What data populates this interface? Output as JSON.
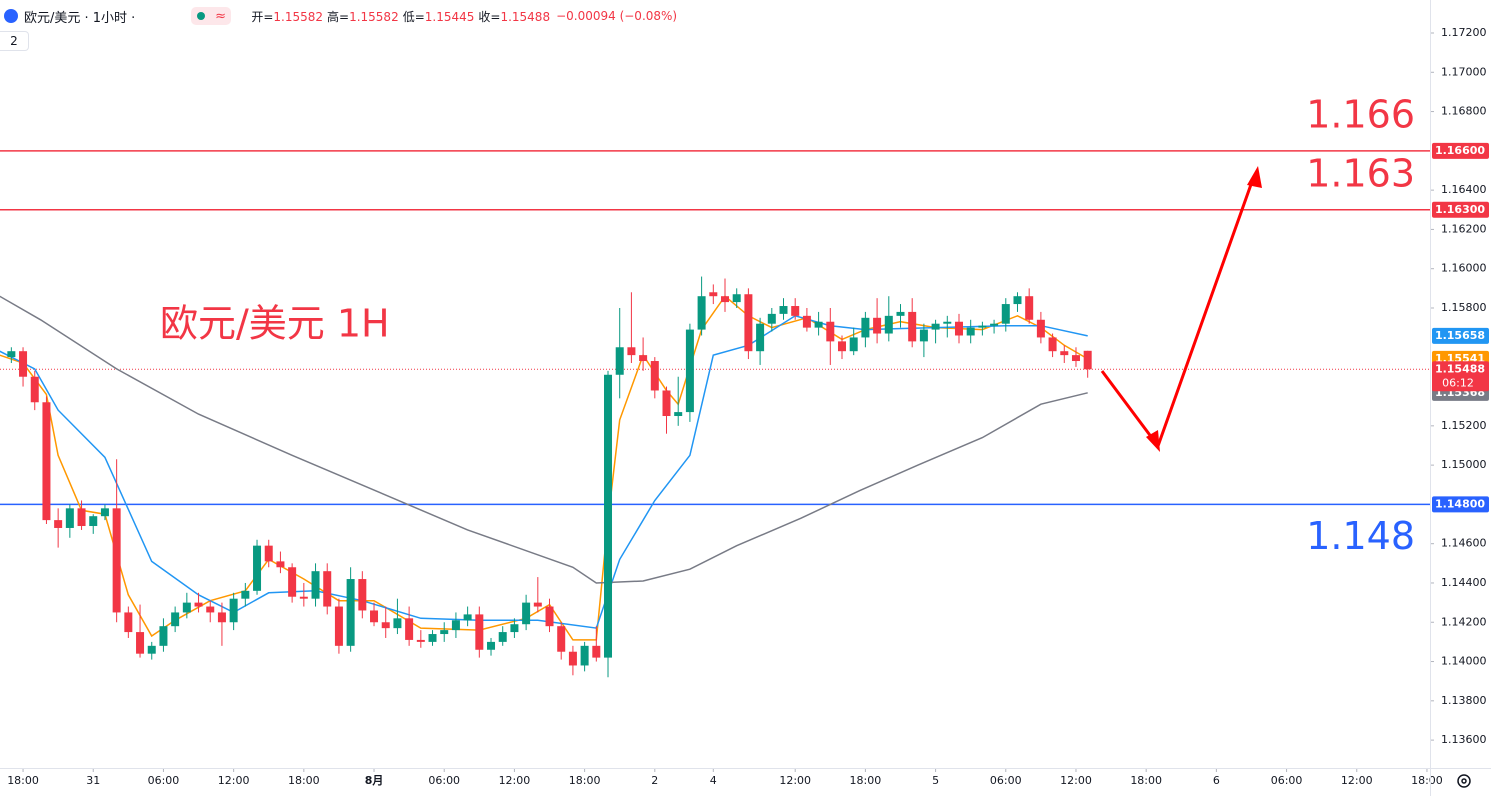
{
  "chart_data": {
    "type": "candlestick",
    "symbol": "欧元/美元 · 1小时 ·",
    "ohlc": [
      {
        "label": "开=",
        "value": 1.15582
      },
      {
        "label": "高=",
        "value": 1.15582
      },
      {
        "label": "低=",
        "value": 1.15445
      },
      {
        "label": "收=",
        "value": 1.15488
      }
    ],
    "change": "−0.00094 (−0.08%)",
    "indicator_count": "2",
    "annotation": "欧元/美元 1H",
    "countdown": "06:12",
    "up_color": "#089981",
    "down_color": "#f23645",
    "grid": false,
    "xlim": [
      -0.97,
      121.26
    ],
    "ylim": [
      1.13458,
      1.17368
    ],
    "xticks": [
      {
        "value": 1,
        "label": "18:00"
      },
      {
        "value": 7,
        "label": "31"
      },
      {
        "value": 13,
        "label": "06:00"
      },
      {
        "value": 19,
        "label": "12:00"
      },
      {
        "value": 25,
        "label": "18:00"
      },
      {
        "value": 31,
        "label": "8月"
      },
      {
        "value": 37,
        "label": "06:00"
      },
      {
        "value": 43,
        "label": "12:00"
      },
      {
        "value": 49,
        "label": "18:00"
      },
      {
        "value": 55,
        "label": "2"
      },
      {
        "value": 60,
        "label": "4"
      },
      {
        "value": 67,
        "label": "12:00"
      },
      {
        "value": 73,
        "label": "18:00"
      },
      {
        "value": 79,
        "label": "5"
      },
      {
        "value": 85,
        "label": "06:00"
      },
      {
        "value": 91,
        "label": "12:00"
      },
      {
        "value": 97,
        "label": "18:00"
      },
      {
        "value": 103,
        "label": "6"
      },
      {
        "value": 109,
        "label": "06:00"
      },
      {
        "value": 115,
        "label": "12:00"
      },
      {
        "value": 121,
        "label": "18:00"
      }
    ],
    "yticks": [
      {
        "value": 1.172,
        "label": "1.17200"
      },
      {
        "value": 1.17,
        "label": "1.17000"
      },
      {
        "value": 1.168,
        "label": "1.16800"
      },
      {
        "value": 1.164,
        "label": "1.16400"
      },
      {
        "value": 1.162,
        "label": "1.16200"
      },
      {
        "value": 1.16,
        "label": "1.16000"
      },
      {
        "value": 1.158,
        "label": "1.15800"
      },
      {
        "value": 1.152,
        "label": "1.15200"
      },
      {
        "value": 1.15,
        "label": "1.15000"
      },
      {
        "value": 1.146,
        "label": "1.14600"
      },
      {
        "value": 1.144,
        "label": "1.14400"
      },
      {
        "value": 1.142,
        "label": "1.14200"
      },
      {
        "value": 1.14,
        "label": "1.14000"
      },
      {
        "value": 1.138,
        "label": "1.13800"
      },
      {
        "value": 1.136,
        "label": "1.13600"
      }
    ],
    "levels": [
      {
        "value": 1.166,
        "label": "1.16600",
        "color": "#f23645"
      },
      {
        "value": 1.163,
        "label": "1.16300",
        "color": "#f23645"
      },
      {
        "value": 1.148,
        "label": "1.14800",
        "color": "#2962ff"
      }
    ],
    "candles": [
      [
        1.1555,
        1.156,
        1.1552,
        1.1558
      ],
      [
        1.1558,
        1.156,
        1.154,
        1.1545
      ],
      [
        1.1545,
        1.1548,
        1.1528,
        1.1532
      ],
      [
        1.1532,
        1.1535,
        1.147,
        1.1472
      ],
      [
        1.1472,
        1.1478,
        1.1458,
        1.1468
      ],
      [
        1.1468,
        1.148,
        1.1463,
        1.1478
      ],
      [
        1.1478,
        1.1482,
        1.1467,
        1.1469
      ],
      [
        1.1469,
        1.1475,
        1.1465,
        1.1474
      ],
      [
        1.1474,
        1.148,
        1.1472,
        1.1478
      ],
      [
        1.1478,
        1.1503,
        1.142,
        1.1425
      ],
      [
        1.1425,
        1.1428,
        1.1412,
        1.1415
      ],
      [
        1.1415,
        1.1429,
        1.1402,
        1.1404
      ],
      [
        1.1404,
        1.141,
        1.1401,
        1.1408
      ],
      [
        1.1408,
        1.1422,
        1.1405,
        1.1418
      ],
      [
        1.1418,
        1.1428,
        1.1415,
        1.1425
      ],
      [
        1.1425,
        1.1435,
        1.1422,
        1.143
      ],
      [
        1.143,
        1.1435,
        1.1425,
        1.1428
      ],
      [
        1.1428,
        1.1431,
        1.142,
        1.1425
      ],
      [
        1.1425,
        1.143,
        1.1408,
        1.142
      ],
      [
        1.142,
        1.1435,
        1.1416,
        1.1432
      ],
      [
        1.1432,
        1.144,
        1.1428,
        1.1436
      ],
      [
        1.1436,
        1.1462,
        1.1434,
        1.1459
      ],
      [
        1.1459,
        1.1462,
        1.1448,
        1.1451
      ],
      [
        1.1451,
        1.1456,
        1.1445,
        1.1448
      ],
      [
        1.1448,
        1.145,
        1.143,
        1.1433
      ],
      [
        1.1433,
        1.144,
        1.1428,
        1.1432
      ],
      [
        1.1432,
        1.145,
        1.1428,
        1.1446
      ],
      [
        1.1446,
        1.145,
        1.1424,
        1.1428
      ],
      [
        1.1428,
        1.1432,
        1.1404,
        1.1408
      ],
      [
        1.1408,
        1.1448,
        1.1405,
        1.1442
      ],
      [
        1.1442,
        1.1446,
        1.1422,
        1.1426
      ],
      [
        1.1426,
        1.143,
        1.1418,
        1.142
      ],
      [
        1.142,
        1.1428,
        1.1412,
        1.1417
      ],
      [
        1.1417,
        1.1432,
        1.1414,
        1.1422
      ],
      [
        1.1422,
        1.1428,
        1.1408,
        1.1411
      ],
      [
        1.1411,
        1.1416,
        1.1407,
        1.141
      ],
      [
        1.141,
        1.1416,
        1.1408,
        1.1414
      ],
      [
        1.1414,
        1.142,
        1.141,
        1.1416
      ],
      [
        1.1416,
        1.1425,
        1.1412,
        1.1421
      ],
      [
        1.1421,
        1.1428,
        1.1418,
        1.1424
      ],
      [
        1.1424,
        1.1428,
        1.1402,
        1.1406
      ],
      [
        1.1406,
        1.1412,
        1.1403,
        1.141
      ],
      [
        1.141,
        1.1418,
        1.1408,
        1.1415
      ],
      [
        1.1415,
        1.1422,
        1.1412,
        1.1419
      ],
      [
        1.1419,
        1.1434,
        1.1416,
        1.143
      ],
      [
        1.143,
        1.1443,
        1.1425,
        1.1428
      ],
      [
        1.1428,
        1.1432,
        1.1415,
        1.1418
      ],
      [
        1.1418,
        1.142,
        1.1401,
        1.1405
      ],
      [
        1.1405,
        1.1408,
        1.1393,
        1.1398
      ],
      [
        1.1398,
        1.141,
        1.1395,
        1.1408
      ],
      [
        1.1408,
        1.1418,
        1.14,
        1.1402
      ],
      [
        1.1402,
        1.1548,
        1.1392,
        1.1546
      ],
      [
        1.1546,
        1.158,
        1.1534,
        1.156
      ],
      [
        1.156,
        1.1588,
        1.1552,
        1.1556
      ],
      [
        1.1556,
        1.1565,
        1.1548,
        1.1553
      ],
      [
        1.1553,
        1.1555,
        1.1534,
        1.1538
      ],
      [
        1.1538,
        1.154,
        1.1516,
        1.1525
      ],
      [
        1.1525,
        1.1545,
        1.152,
        1.1527
      ],
      [
        1.1527,
        1.1572,
        1.1522,
        1.1569
      ],
      [
        1.1569,
        1.1596,
        1.1566,
        1.1586
      ],
      [
        1.1588,
        1.1592,
        1.1582,
        1.1586
      ],
      [
        1.1586,
        1.1595,
        1.1578,
        1.1583
      ],
      [
        1.1583,
        1.159,
        1.158,
        1.1587
      ],
      [
        1.1587,
        1.159,
        1.1554,
        1.1558
      ],
      [
        1.1558,
        1.1575,
        1.1551,
        1.1572
      ],
      [
        1.1572,
        1.158,
        1.1568,
        1.1577
      ],
      [
        1.1577,
        1.1585,
        1.1574,
        1.1581
      ],
      [
        1.1581,
        1.1585,
        1.1574,
        1.1576
      ],
      [
        1.1576,
        1.158,
        1.1568,
        1.157
      ],
      [
        1.157,
        1.1578,
        1.1566,
        1.1573
      ],
      [
        1.1573,
        1.158,
        1.1551,
        1.1563
      ],
      [
        1.1563,
        1.1566,
        1.1554,
        1.1558
      ],
      [
        1.1558,
        1.157,
        1.1556,
        1.1565
      ],
      [
        1.1565,
        1.1578,
        1.156,
        1.1575
      ],
      [
        1.1575,
        1.1585,
        1.1562,
        1.1567
      ],
      [
        1.1567,
        1.1586,
        1.1563,
        1.1576
      ],
      [
        1.1576,
        1.1582,
        1.157,
        1.1578
      ],
      [
        1.1578,
        1.1585,
        1.156,
        1.1563
      ],
      [
        1.1563,
        1.1572,
        1.1555,
        1.1569
      ],
      [
        1.1569,
        1.1574,
        1.1562,
        1.1572
      ],
      [
        1.1572,
        1.1576,
        1.1565,
        1.1573
      ],
      [
        1.1573,
        1.1577,
        1.1562,
        1.1566
      ],
      [
        1.1566,
        1.1574,
        1.1562,
        1.157
      ],
      [
        1.157,
        1.1573,
        1.1566,
        1.1571
      ],
      [
        1.1571,
        1.1574,
        1.1567,
        1.1572
      ],
      [
        1.1572,
        1.1585,
        1.1568,
        1.1582
      ],
      [
        1.1582,
        1.1588,
        1.1578,
        1.1586
      ],
      [
        1.1586,
        1.159,
        1.1572,
        1.1574
      ],
      [
        1.1574,
        1.1578,
        1.1562,
        1.1565
      ],
      [
        1.1565,
        1.1567,
        1.1555,
        1.1558
      ],
      [
        1.1558,
        1.1561,
        1.1552,
        1.1556
      ],
      [
        1.1556,
        1.156,
        1.155,
        1.1553
      ],
      [
        1.15582,
        1.15582,
        1.15445,
        1.15488
      ]
    ],
    "series": [
      {
        "color": "#ff9800",
        "x": [
          -1,
          1,
          3,
          4,
          6,
          8,
          10,
          12,
          14,
          17,
          20,
          22,
          25,
          28,
          31,
          35,
          40,
          44,
          46,
          48,
          50,
          51,
          52,
          54,
          56,
          57,
          59,
          61,
          63,
          65,
          68,
          71,
          73,
          76,
          79,
          83,
          86,
          88,
          90,
          92
        ],
        "values": [
          1.1556,
          1.1552,
          1.1536,
          1.1505,
          1.1477,
          1.1475,
          1.1434,
          1.1413,
          1.1421,
          1.1431,
          1.1436,
          1.1452,
          1.1442,
          1.1431,
          1.1431,
          1.1417,
          1.1416,
          1.1422,
          1.1429,
          1.1411,
          1.1411,
          1.1472,
          1.1523,
          1.1556,
          1.1538,
          1.1531,
          1.1569,
          1.1586,
          1.1576,
          1.157,
          1.1575,
          1.1564,
          1.1569,
          1.1573,
          1.157,
          1.1569,
          1.1576,
          1.157,
          1.1561,
          1.15541
        ]
      },
      {
        "color": "#2196f3",
        "x": [
          -1,
          2,
          4,
          8,
          12,
          16,
          19,
          22,
          26,
          30,
          35,
          40,
          45,
          50,
          52,
          55,
          58,
          60,
          63,
          67,
          70,
          73,
          79,
          85,
          88,
          92
        ],
        "values": [
          1.1558,
          1.1549,
          1.1528,
          1.1504,
          1.1451,
          1.1434,
          1.1425,
          1.1435,
          1.1436,
          1.1431,
          1.1422,
          1.1421,
          1.1421,
          1.1417,
          1.1452,
          1.1482,
          1.1505,
          1.1556,
          1.1561,
          1.1576,
          1.1571,
          1.1569,
          1.157,
          1.1571,
          1.1571,
          1.15658
        ]
      },
      {
        "color": "#787b86",
        "x": [
          -1,
          2.5,
          9,
          16,
          24,
          31.5,
          39,
          48,
          50,
          54,
          58,
          62,
          67.5,
          72.5,
          77.5,
          83,
          88,
          92
        ],
        "values": [
          1.1586,
          1.1574,
          1.1549,
          1.1526,
          1.1505,
          1.1486,
          1.1467,
          1.1448,
          1.144,
          1.1441,
          1.1447,
          1.1459,
          1.1473,
          1.1487,
          1.15,
          1.1514,
          1.1531,
          1.15368
        ]
      }
    ]
  }
}
